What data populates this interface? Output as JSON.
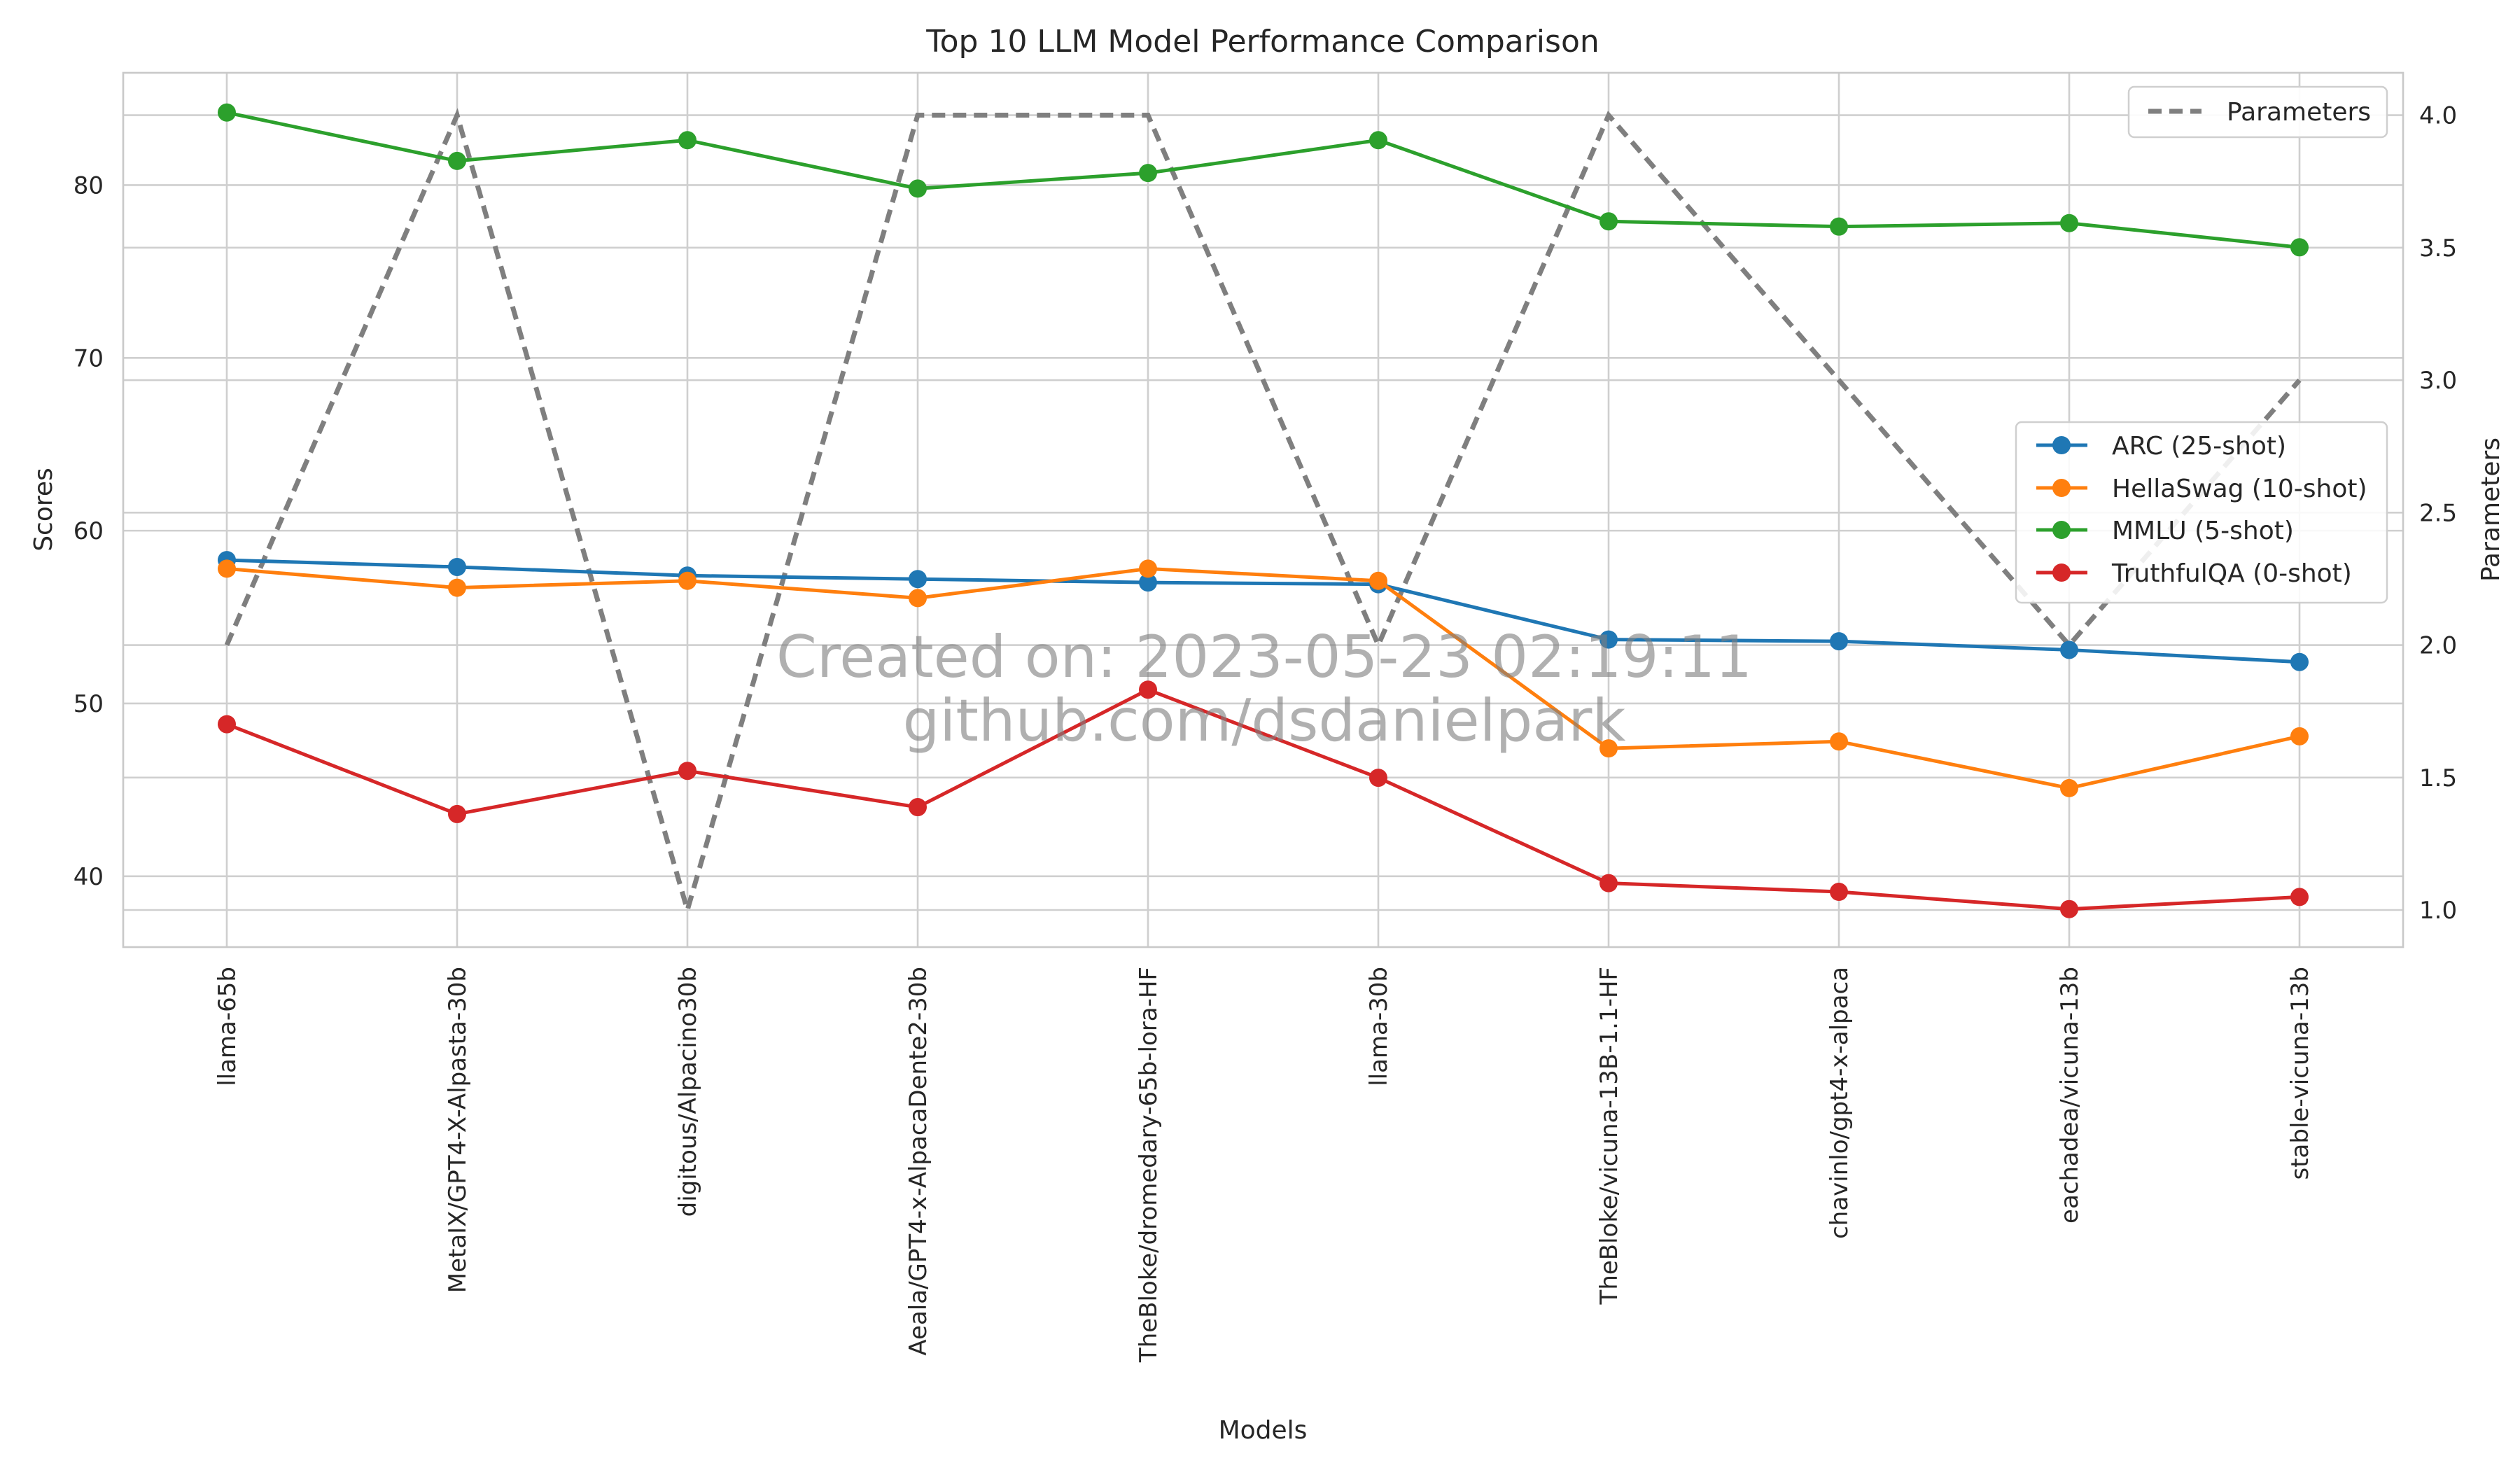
{
  "chart_data": {
    "type": "line",
    "title": "Top 10 LLM Model Performance Comparison",
    "xlabel": "Models",
    "ylabel": "Scores",
    "ylabel_right": "Parameters",
    "grid": true,
    "categories": [
      "llama-65b",
      "MetaIX/GPT4-X-Alpasta-30b",
      "digitous/Alpacino30b",
      "Aeala/GPT4-x-AlpacaDente2-30b",
      "TheBloke/dromedary-65b-lora-HF",
      "llama-30b",
      "TheBloke/vicuna-13B-1.1-HF",
      "chavinlo/gpt4-x-alpaca",
      "eachadea/vicuna-13b",
      "stable-vicuna-13b"
    ],
    "ylim": [
      35.9,
      86.5
    ],
    "y_ticks": [
      40,
      50,
      60,
      70,
      80
    ],
    "ylim_right": [
      0.86,
      4.16
    ],
    "y_ticks_right": [
      1.0,
      1.5,
      2.0,
      2.5,
      3.0,
      3.5,
      4.0
    ],
    "series": [
      {
        "name": "ARC (25-shot)",
        "axis": "left",
        "color": "#1f77b4",
        "values": [
          58.3,
          57.9,
          57.4,
          57.2,
          57.0,
          56.9,
          53.7,
          53.6,
          53.1,
          52.4
        ]
      },
      {
        "name": "HellaSwag (10-shot)",
        "axis": "left",
        "color": "#ff7f0e",
        "values": [
          57.8,
          56.7,
          57.1,
          56.1,
          57.8,
          57.1,
          47.4,
          47.8,
          45.1,
          48.1
        ]
      },
      {
        "name": "MMLU (5-shot)",
        "axis": "left",
        "color": "#2ca02c",
        "values": [
          84.2,
          81.4,
          82.6,
          79.8,
          80.7,
          82.6,
          77.9,
          77.6,
          77.8,
          76.4
        ]
      },
      {
        "name": "TruthfulQA (0-shot)",
        "axis": "left",
        "color": "#d62728",
        "values": [
          48.8,
          43.6,
          46.1,
          44.0,
          50.8,
          45.7,
          39.6,
          39.1,
          38.1,
          38.8
        ]
      },
      {
        "name": "Parameters",
        "axis": "right",
        "color": "#7f7f7f",
        "style": "dashed",
        "values": [
          2,
          4,
          1,
          4,
          4,
          2,
          4,
          3,
          2,
          3
        ]
      }
    ],
    "legend_left_axis": "center-right",
    "legend_right_axis": "top-right",
    "watermark": [
      "Created on: 2023-05-23 02:19:11",
      "github.com/dsdanielpark"
    ]
  }
}
